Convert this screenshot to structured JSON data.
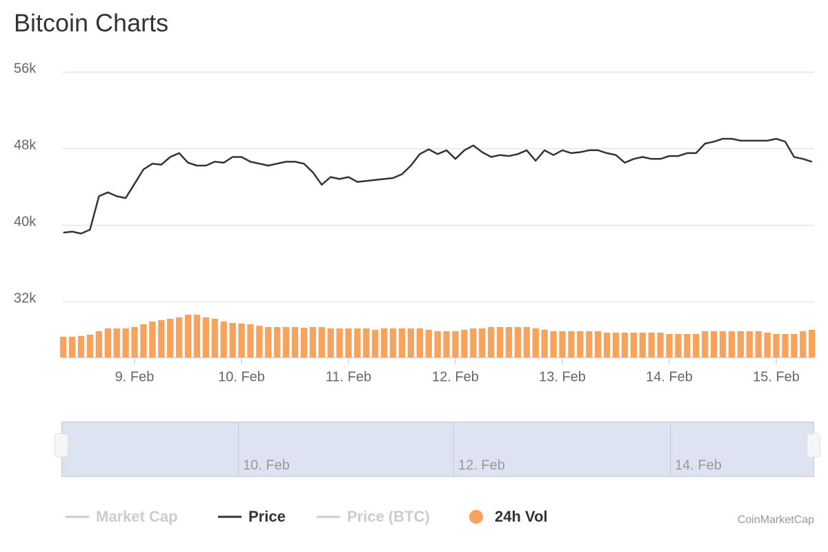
{
  "chart_data": {
    "type": "stock",
    "title": "Bitcoin Charts",
    "categories": [
      null,
      null,
      null,
      null,
      null,
      null,
      null,
      null,
      "9. Feb",
      null,
      null,
      null,
      null,
      null,
      null,
      null,
      null,
      null,
      null,
      null,
      "10. Feb",
      null,
      null,
      null,
      null,
      null,
      null,
      null,
      null,
      null,
      null,
      null,
      "11. Feb",
      null,
      null,
      null,
      null,
      null,
      null,
      null,
      null,
      null,
      null,
      null,
      "12. Feb",
      null,
      null,
      null,
      null,
      null,
      null,
      null,
      null,
      null,
      null,
      null,
      "13. Feb",
      null,
      null,
      null,
      null,
      null,
      null,
      null,
      null,
      null,
      null,
      null,
      "14. Feb",
      null,
      null,
      null,
      null,
      null,
      null,
      null,
      null,
      null,
      null,
      null,
      "15. Feb",
      null,
      null,
      null,
      null
    ],
    "ylim": [
      32000,
      56000
    ],
    "yticks": [
      {
        "value": 32000,
        "label": "32k"
      },
      {
        "value": 40000,
        "label": "40k"
      },
      {
        "value": 48000,
        "label": "48k"
      },
      {
        "value": 56000,
        "label": "56k"
      }
    ],
    "y2lim": [
      0,
      100
    ],
    "grid": true,
    "series": [
      {
        "name": "Market Cap",
        "type": "line",
        "color": "#cccccc",
        "visible": false
      },
      {
        "name": "Price",
        "type": "line",
        "color": "#333333",
        "visible": true,
        "values": [
          39200,
          39300,
          39100,
          39500,
          43000,
          43400,
          43000,
          42800,
          44300,
          45800,
          46400,
          46300,
          47100,
          47500,
          46500,
          46200,
          46200,
          46600,
          46500,
          47100,
          47100,
          46600,
          46400,
          46200,
          46400,
          46600,
          46600,
          46400,
          45500,
          44200,
          45000,
          44800,
          45000,
          44500,
          44600,
          44700,
          44800,
          44900,
          45300,
          46200,
          47400,
          47900,
          47400,
          47800,
          46900,
          47800,
          48300,
          47600,
          47100,
          47300,
          47200,
          47400,
          47800,
          46700,
          47800,
          47300,
          47800,
          47500,
          47600,
          47800,
          47800,
          47500,
          47300,
          46500,
          46900,
          47100,
          46900,
          46900,
          47200,
          47200,
          47500,
          47500,
          48500,
          48700,
          49000,
          49000,
          48800,
          48800,
          48800,
          48800,
          49000,
          48700,
          47100,
          46900,
          46600
        ]
      },
      {
        "name": "Price (BTC)",
        "type": "line",
        "color": "#cccccc",
        "visible": false
      },
      {
        "name": "24h Vol",
        "type": "column",
        "color": "#f7a35c",
        "visible": true,
        "axis": "y2",
        "values": [
          30,
          30,
          31,
          33,
          38,
          42,
          42,
          42,
          44,
          48,
          52,
          54,
          56,
          58,
          62,
          62,
          58,
          56,
          52,
          50,
          49,
          48,
          46,
          44,
          44,
          44,
          44,
          43,
          44,
          44,
          42,
          42,
          42,
          42,
          42,
          40,
          42,
          42,
          42,
          42,
          42,
          40,
          38,
          38,
          38,
          40,
          42,
          42,
          44,
          44,
          44,
          44,
          44,
          42,
          40,
          38,
          38,
          38,
          38,
          38,
          38,
          36,
          36,
          36,
          36,
          36,
          36,
          36,
          34,
          34,
          34,
          34,
          38,
          38,
          38,
          38,
          38,
          38,
          38,
          36,
          34,
          34,
          34,
          38,
          40
        ]
      }
    ],
    "navigator": {
      "labels": [
        "10. Feb",
        "12. Feb",
        "14. Feb"
      ]
    },
    "credits": "CoinMarketCap"
  }
}
